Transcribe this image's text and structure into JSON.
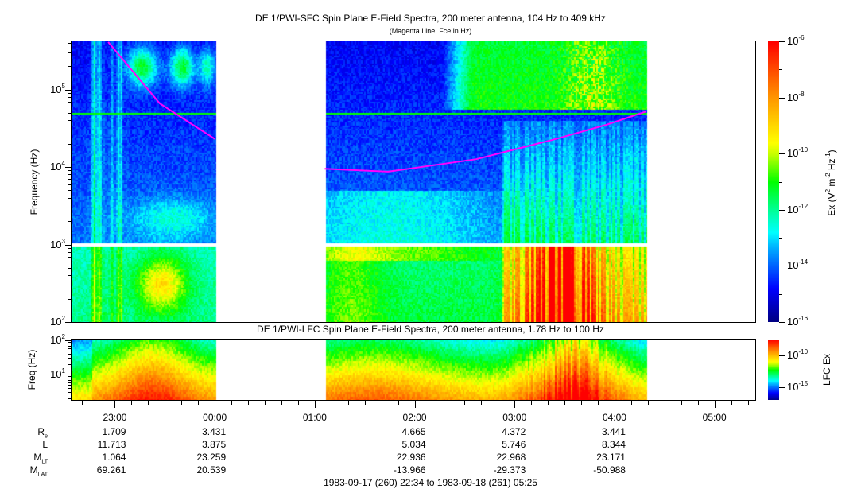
{
  "chart_data": {
    "type": "heatmap",
    "panels": [
      {
        "id": "sfc",
        "title": "DE 1/PWI-SFC  Spin Plane E-Field Spectra, 200 meter antenna, 104 Hz to 409 kHz",
        "subtitle": "(Magenta Line: Fce in Hz)",
        "ylabel": "Frequency (Hz)",
        "yscale": "log",
        "ylim": [
          100,
          409000
        ],
        "yticks": [
          {
            "base": "10",
            "exp": "2"
          },
          {
            "base": "10",
            "exp": "3"
          },
          {
            "base": "10",
            "exp": "4"
          },
          {
            "base": "10",
            "exp": "5"
          }
        ],
        "colorbar": {
          "label": "Ex (V",
          "label_full": "Ex (V^2 m^-2 Hz^-1)",
          "range_log10": [
            -16,
            -6
          ],
          "ticks": [
            {
              "base": "10",
              "exp": "-6"
            },
            {
              "base": "10",
              "exp": "-8"
            },
            {
              "base": "10",
              "exp": "-10"
            },
            {
              "base": "10",
              "exp": "-12"
            },
            {
              "base": "10",
              "exp": "-14"
            },
            {
              "base": "10",
              "exp": "-16"
            }
          ]
        },
        "fce_line_hz": [
          {
            "t": "22:56",
            "hz": 409000
          },
          {
            "t": "23:27",
            "hz": 66000
          },
          {
            "t": "00:00",
            "hz": 23000
          },
          {
            "t": "01:06",
            "hz": 9500
          },
          {
            "t": "01:44",
            "hz": 8700
          },
          {
            "t": "02:37",
            "hz": 12600
          },
          {
            "t": "03:25",
            "hz": 23000
          },
          {
            "t": "03:55",
            "hz": 35000
          },
          {
            "t": "04:19",
            "hz": 52000
          }
        ]
      },
      {
        "id": "lfc",
        "title": "DE 1/PWI-LFC  Spin Plane E-Field Spectra, 200 meter antenna, 1.78 Hz to 100 Hz",
        "ylabel": "Freq (Hz)",
        "yscale": "log",
        "ylim": [
          1.78,
          100
        ],
        "yticks": [
          {
            "base": "10",
            "exp": "2"
          },
          {
            "base": "10",
            "exp": "1"
          }
        ],
        "colorbar": {
          "label": "LFC Ex",
          "ticks": [
            {
              "base": "10",
              "exp": "-10"
            },
            {
              "base": "10",
              "exp": "-15"
            }
          ]
        }
      }
    ],
    "x": {
      "range": [
        "22:34",
        "05:25"
      ],
      "ticks": [
        "23:00",
        "00:00",
        "01:00",
        "02:00",
        "03:00",
        "04:00",
        "05:00"
      ],
      "data_intervals": [
        [
          "22:34",
          "00:00"
        ],
        [
          "01:06",
          "04:19"
        ]
      ]
    },
    "ephemeris": [
      {
        "label": "R",
        "sub": "e",
        "values": [
          "1.709",
          "3.431",
          "",
          "4.665",
          "4.372",
          "3.441",
          ""
        ]
      },
      {
        "label": "L",
        "sub": "",
        "values": [
          "11.713",
          "3.875",
          "",
          "5.034",
          "5.746",
          "8.344",
          ""
        ]
      },
      {
        "label": "M",
        "sub": "LT",
        "values": [
          "1.064",
          "23.259",
          "",
          "22.936",
          "22.968",
          "23.171",
          ""
        ]
      },
      {
        "label": "M",
        "sub": "LAT",
        "values": [
          "69.261",
          "20.539",
          "",
          "-13.966",
          "-29.373",
          "-50.988",
          ""
        ]
      }
    ],
    "time_range_label": "1983-09-17 (260) 22:34 to 1983-09-18 (261) 05:25"
  }
}
